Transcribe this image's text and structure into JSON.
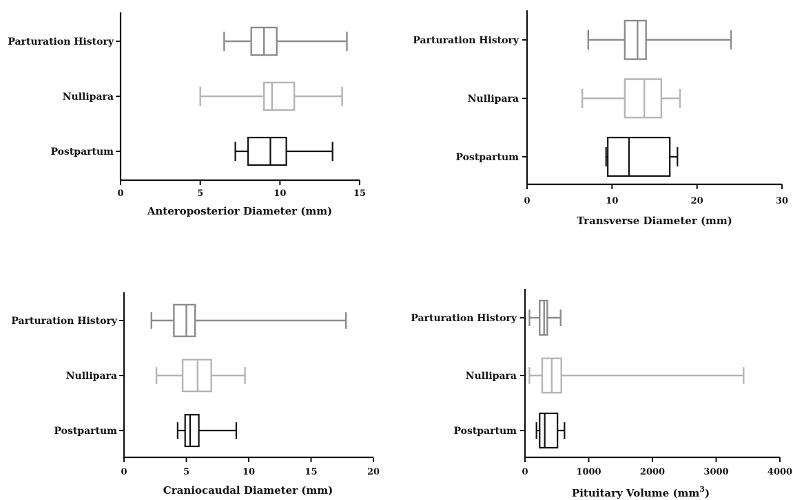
{
  "colors": {
    "Parturation History": "#8c8c8c",
    "Nullipara": "#b4b4b4",
    "Postpartum": "#111111"
  },
  "chart_data": [
    {
      "type": "boxplot",
      "orientation": "horizontal",
      "xlabel": "Anteroposterior Diameter (mm)",
      "xlim": [
        0,
        15
      ],
      "xticks": [
        "0",
        "5",
        "10",
        "15"
      ],
      "xtick_values": [
        0,
        5,
        10,
        15
      ],
      "categories": [
        "Parturation History",
        "Nullipara",
        "Postpartum"
      ],
      "boxes": [
        {
          "name": "Parturation History",
          "min": 6.5,
          "q1": 8.2,
          "median": 9.0,
          "q3": 9.8,
          "max": 14.2
        },
        {
          "name": "Nullipara",
          "min": 5.0,
          "q1": 9.0,
          "median": 9.5,
          "q3": 10.9,
          "max": 13.9
        },
        {
          "name": "Postpartum",
          "min": 7.2,
          "q1": 8.0,
          "median": 9.4,
          "q3": 10.4,
          "max": 13.3
        }
      ]
    },
    {
      "type": "boxplot",
      "orientation": "horizontal",
      "xlabel": "Transverse Diameter (mm)",
      "xlim": [
        0,
        30
      ],
      "xticks": [
        "0",
        "10",
        "20",
        "30"
      ],
      "xtick_values": [
        0,
        10,
        20,
        30
      ],
      "categories": [
        "Parturation History",
        "Nullipara",
        "Postpartum"
      ],
      "boxes": [
        {
          "name": "Parturation History",
          "min": 7.2,
          "q1": 11.5,
          "median": 13.0,
          "q3": 14.0,
          "max": 24.0
        },
        {
          "name": "Nullipara",
          "min": 6.5,
          "q1": 11.5,
          "median": 13.8,
          "q3": 15.8,
          "max": 18.0
        },
        {
          "name": "Postpartum",
          "min": 9.3,
          "q1": 9.5,
          "median": 12.0,
          "q3": 16.8,
          "max": 17.7
        }
      ]
    },
    {
      "type": "boxplot",
      "orientation": "horizontal",
      "xlabel": "Craniocaudal Diameter (mm)",
      "xlim": [
        0,
        20
      ],
      "xticks": [
        "0",
        "5",
        "10",
        "15",
        "20"
      ],
      "xtick_values": [
        0,
        5,
        10,
        15,
        20
      ],
      "categories": [
        "Parturation History",
        "Nullipara",
        "Postpartum"
      ],
      "boxes": [
        {
          "name": "Parturation History",
          "min": 2.2,
          "q1": 4.0,
          "median": 5.0,
          "q3": 5.7,
          "max": 17.8
        },
        {
          "name": "Nullipara",
          "min": 2.6,
          "q1": 4.7,
          "median": 5.9,
          "q3": 7.0,
          "max": 9.7
        },
        {
          "name": "Postpartum",
          "min": 4.3,
          "q1": 4.9,
          "median": 5.3,
          "q3": 6.0,
          "max": 9.0
        }
      ]
    },
    {
      "type": "boxplot",
      "orientation": "horizontal",
      "xlabel": "Pituitary Volume (mm",
      "xlabel_sup": "3",
      "xlabel_suffix": ")",
      "xlim": [
        0,
        4000
      ],
      "xticks": [
        "0",
        "1000",
        "2000",
        "3000",
        "4000"
      ],
      "xtick_values": [
        0,
        1000,
        2000,
        3000,
        4000
      ],
      "categories": [
        "Parturation History",
        "Nullipara",
        "Postpartum"
      ],
      "boxes": [
        {
          "name": "Parturation History",
          "min": 70,
          "q1": 230,
          "median": 300,
          "q3": 350,
          "max": 560
        },
        {
          "name": "Nullipara",
          "min": 70,
          "q1": 270,
          "median": 420,
          "q3": 570,
          "max": 3430
        },
        {
          "name": "Postpartum",
          "min": 180,
          "q1": 230,
          "median": 310,
          "q3": 510,
          "max": 620
        }
      ]
    }
  ]
}
